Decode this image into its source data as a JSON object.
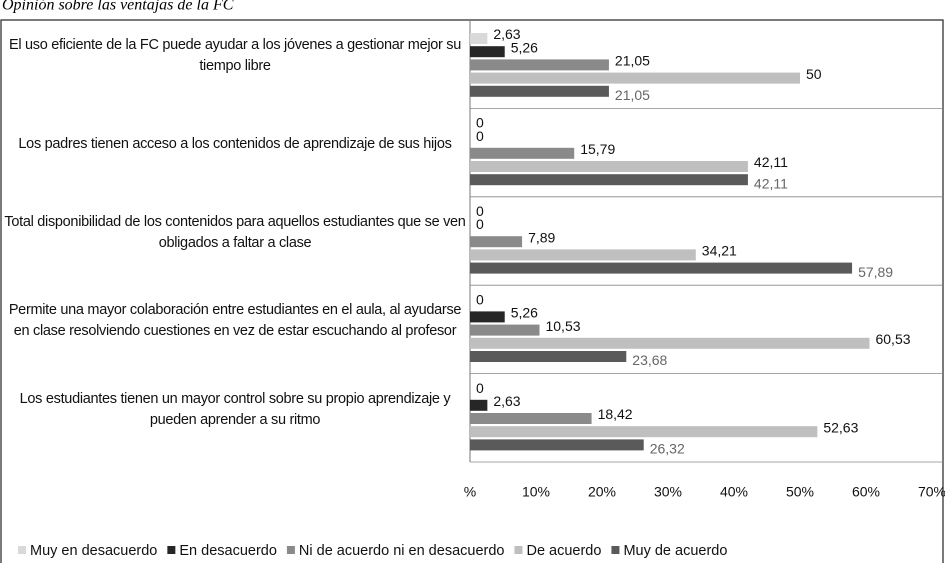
{
  "chart_data": {
    "type": "hbar",
    "title": "Opinión sobre las ventajas de la FC",
    "categories": [
      "El uso eficiente de la FC puede ayudar a los jóvenes a gestionar mejor su tiempo libre",
      "Los padres tienen acceso a los contenidos de aprendizaje de sus hijos",
      "Total disponibilidad de los contenidos para aquellos estudiantes que se ven obligados a faltar a clase",
      "Permite una mayor colaboración entre estudiantes en el aula, al ayudarse en clase resolviendo cuestiones en vez de estar escuchando al profesor",
      "Los estudiantes tienen un mayor control sobre su propio aprendizaje y pueden aprender a su ritmo"
    ],
    "series": [
      {
        "name": "Muy en desacuerdo",
        "color": "#d9d9d9",
        "values": [
          2.63,
          0,
          0,
          0,
          0
        ],
        "value_labels": [
          "2,63",
          "0",
          "0",
          "0",
          "0"
        ]
      },
      {
        "name": "En desacuerdo",
        "color": "#262626",
        "values": [
          5.26,
          0,
          0,
          5.26,
          2.63
        ],
        "value_labels": [
          "5,26",
          "0",
          "0",
          "5,26",
          "2,63"
        ]
      },
      {
        "name": "Ni de acuerdo ni en desacuerdo",
        "color": "#8a8a8a",
        "values": [
          21.05,
          15.79,
          7.89,
          10.53,
          18.42
        ],
        "value_labels": [
          "21,05",
          "15,79",
          "7,89",
          "10,53",
          "18,42"
        ]
      },
      {
        "name": "De acuerdo",
        "color": "#bfbfbf",
        "values": [
          50,
          42.11,
          34.21,
          60.53,
          52.63
        ],
        "value_labels": [
          "50",
          "42,11",
          "34,21",
          "60,53",
          "52,63"
        ]
      },
      {
        "name": "Muy de acuerdo",
        "color": "#5a5a5a",
        "values": [
          21.05,
          42.11,
          57.89,
          23.68,
          26.32
        ],
        "value_labels": [
          "21,05",
          "42,11",
          "57,89",
          "23,68",
          "26,32"
        ]
      }
    ],
    "xlim": [
      0,
      70
    ],
    "xticks": [
      {
        "value": 0,
        "label": "%"
      },
      {
        "value": 10,
        "label": "10%"
      },
      {
        "value": 20,
        "label": "20%"
      },
      {
        "value": 30,
        "label": "30%"
      },
      {
        "value": 40,
        "label": "40%"
      },
      {
        "value": 50,
        "label": "50%"
      },
      {
        "value": 60,
        "label": "60%"
      },
      {
        "value": 70,
        "label": "70%"
      }
    ],
    "legend": "bottom"
  }
}
